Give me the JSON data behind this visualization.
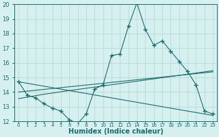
{
  "xlabel": "Humidex (Indice chaleur)",
  "x": [
    0,
    1,
    2,
    3,
    4,
    5,
    6,
    7,
    8,
    9,
    10,
    11,
    12,
    13,
    14,
    15,
    16,
    17,
    18,
    19,
    20,
    21,
    22,
    23
  ],
  "y_main": [
    14.7,
    13.8,
    13.6,
    13.2,
    12.9,
    12.7,
    12.1,
    11.85,
    12.5,
    14.2,
    14.5,
    16.5,
    16.6,
    18.5,
    20.1,
    18.3,
    17.2,
    17.5,
    16.8,
    16.1,
    15.4,
    14.5,
    12.7,
    12.5
  ],
  "y_trend_up1": [
    13.55,
    13.65,
    13.75,
    13.85,
    13.93,
    14.02,
    14.1,
    14.18,
    14.26,
    14.34,
    14.42,
    14.5,
    14.58,
    14.66,
    14.74,
    14.82,
    14.9,
    14.98,
    15.06,
    15.14,
    15.22,
    15.3,
    15.38,
    15.46
  ],
  "y_trend_up2": [
    14.0,
    14.06,
    14.12,
    14.18,
    14.24,
    14.3,
    14.36,
    14.42,
    14.48,
    14.54,
    14.6,
    14.66,
    14.72,
    14.78,
    14.84,
    14.9,
    14.96,
    15.02,
    15.08,
    15.14,
    15.2,
    15.26,
    15.32,
    15.38
  ],
  "y_trend_down": [
    14.7,
    14.6,
    14.5,
    14.4,
    14.3,
    14.2,
    14.1,
    14.0,
    13.9,
    13.8,
    13.7,
    13.6,
    13.5,
    13.4,
    13.3,
    13.2,
    13.1,
    13.0,
    12.9,
    12.8,
    12.7,
    12.6,
    12.5,
    12.4
  ],
  "ylim": [
    12,
    20
  ],
  "yticks": [
    12,
    13,
    14,
    15,
    16,
    17,
    18,
    19,
    20
  ],
  "xlim": [
    -0.5,
    23.5
  ],
  "bg_color": "#d6f0ef",
  "grid_color": "#b8d8d8",
  "line_color": "#1a6b6b",
  "marker": "+",
  "markersize": 4,
  "linewidth": 0.8
}
